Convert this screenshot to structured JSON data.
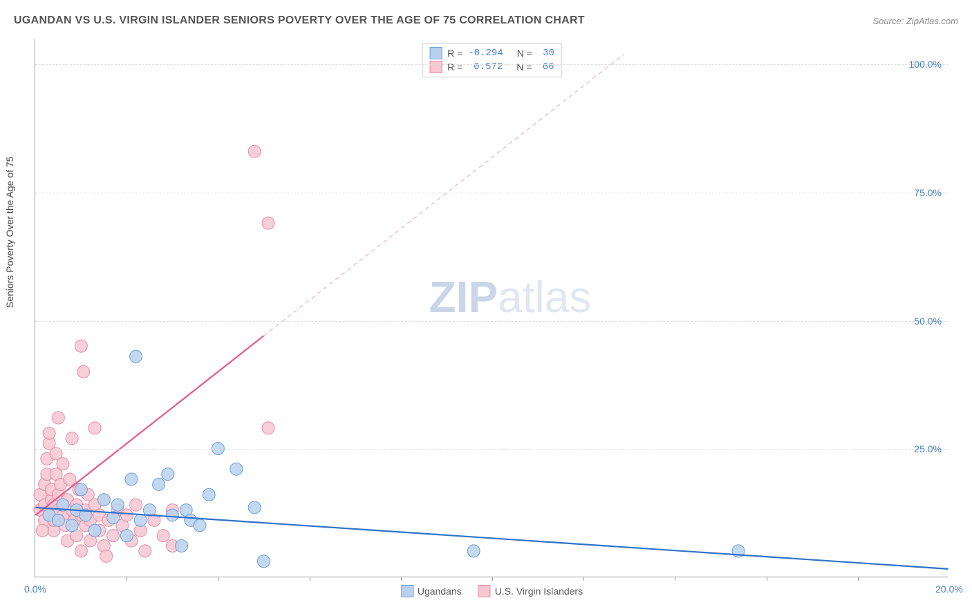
{
  "header": {
    "title": "UGANDAN VS U.S. VIRGIN ISLANDER SENIORS POVERTY OVER THE AGE OF 75 CORRELATION CHART",
    "source_prefix": "Source: ",
    "source": "ZipAtlas.com"
  },
  "chart": {
    "type": "scatter",
    "ylabel": "Seniors Poverty Over the Age of 75",
    "xlim": [
      0,
      20
    ],
    "ylim": [
      0,
      105
    ],
    "yticks": [
      {
        "v": 25,
        "label": "25.0%"
      },
      {
        "v": 50,
        "label": "50.0%"
      },
      {
        "v": 75,
        "label": "75.0%"
      },
      {
        "v": 100,
        "label": "100.0%"
      }
    ],
    "xticks_major": [
      {
        "v": 0,
        "label": "0.0%"
      },
      {
        "v": 20,
        "label": "20.0%"
      }
    ],
    "xticks_minor": [
      2,
      4,
      6,
      8,
      10,
      12,
      14,
      16,
      18
    ],
    "grid_color": "#dddddd",
    "axis_color": "#999999",
    "background_color": "#ffffff",
    "legend_stats": [
      {
        "series": "ugandans",
        "r_label": "R =",
        "r": "-0.294",
        "n_label": "N =",
        "n": "30"
      },
      {
        "series": "virgin_islanders",
        "r_label": "R =",
        "r": "0.572",
        "n_label": "N =",
        "n": "66"
      }
    ],
    "series": {
      "ugandans": {
        "label": "Ugandans",
        "marker_fill": "#b9d1ee",
        "marker_stroke": "#6c9fd8",
        "marker_opacity": 0.85,
        "marker_r": 9,
        "trend": {
          "x1": 0,
          "y1": 13.5,
          "x2": 20,
          "y2": 1.5,
          "color": "#2e72c9",
          "width": 2.2,
          "dash": "none"
        },
        "points": [
          [
            0.3,
            12
          ],
          [
            0.5,
            11
          ],
          [
            0.6,
            14
          ],
          [
            0.8,
            10
          ],
          [
            0.9,
            13
          ],
          [
            1.0,
            17
          ],
          [
            1.1,
            12
          ],
          [
            1.3,
            9
          ],
          [
            1.5,
            15
          ],
          [
            1.7,
            11.5
          ],
          [
            2.0,
            8
          ],
          [
            2.1,
            19
          ],
          [
            2.3,
            11
          ],
          [
            2.5,
            13
          ],
          [
            2.7,
            18
          ],
          [
            2.2,
            43
          ],
          [
            3.0,
            12
          ],
          [
            3.2,
            6
          ],
          [
            3.3,
            13
          ],
          [
            3.4,
            11
          ],
          [
            3.6,
            10
          ],
          [
            4.0,
            25
          ],
          [
            4.4,
            21
          ],
          [
            4.8,
            13.5
          ],
          [
            5.0,
            3
          ],
          [
            3.8,
            16
          ],
          [
            9.6,
            5
          ],
          [
            15.4,
            5
          ],
          [
            2.9,
            20
          ],
          [
            1.8,
            14
          ]
        ]
      },
      "virgin_islanders": {
        "label": "U.S. Virgin Islanders",
        "marker_fill": "#f6c7d2",
        "marker_stroke": "#e88aa4",
        "marker_opacity": 0.85,
        "marker_r": 9,
        "trend_solid": {
          "x1": 0,
          "y1": 12,
          "x2": 5.0,
          "y2": 47,
          "color": "#e9588a",
          "width": 2.2
        },
        "trend_dashed": {
          "x1": 5.0,
          "y1": 47,
          "x2": 12.9,
          "y2": 102,
          "color": "#f3b8c9",
          "width": 1.4,
          "dash": "6,5"
        },
        "points": [
          [
            0.1,
            13
          ],
          [
            0.1,
            16
          ],
          [
            0.2,
            11
          ],
          [
            0.2,
            14
          ],
          [
            0.2,
            18
          ],
          [
            0.25,
            20
          ],
          [
            0.25,
            23
          ],
          [
            0.3,
            26
          ],
          [
            0.3,
            28
          ],
          [
            0.3,
            12
          ],
          [
            0.35,
            15
          ],
          [
            0.35,
            17
          ],
          [
            0.4,
            9
          ],
          [
            0.4,
            11
          ],
          [
            0.4,
            14
          ],
          [
            0.45,
            20
          ],
          [
            0.45,
            24
          ],
          [
            0.5,
            31
          ],
          [
            0.5,
            13
          ],
          [
            0.5,
            16
          ],
          [
            0.55,
            18
          ],
          [
            0.6,
            12
          ],
          [
            0.6,
            22
          ],
          [
            0.65,
            10
          ],
          [
            0.7,
            7
          ],
          [
            0.7,
            15
          ],
          [
            0.75,
            19
          ],
          [
            0.8,
            13
          ],
          [
            0.8,
            27
          ],
          [
            0.85,
            11
          ],
          [
            0.9,
            8
          ],
          [
            0.9,
            14
          ],
          [
            0.95,
            17
          ],
          [
            1.0,
            45
          ],
          [
            1.0,
            12
          ],
          [
            1.0,
            5
          ],
          [
            1.05,
            40
          ],
          [
            1.1,
            10
          ],
          [
            1.1,
            13
          ],
          [
            1.15,
            16
          ],
          [
            1.2,
            7
          ],
          [
            1.2,
            11
          ],
          [
            1.3,
            14
          ],
          [
            1.3,
            29
          ],
          [
            1.4,
            9
          ],
          [
            1.4,
            12
          ],
          [
            1.5,
            6
          ],
          [
            1.5,
            15
          ],
          [
            1.6,
            11
          ],
          [
            1.7,
            8
          ],
          [
            1.8,
            13
          ],
          [
            1.9,
            10
          ],
          [
            2.0,
            12
          ],
          [
            2.1,
            7
          ],
          [
            2.2,
            14
          ],
          [
            2.3,
            9
          ],
          [
            2.4,
            5
          ],
          [
            2.6,
            11
          ],
          [
            2.8,
            8
          ],
          [
            3.0,
            13
          ],
          [
            3.0,
            6
          ],
          [
            4.8,
            83
          ],
          [
            5.1,
            69
          ],
          [
            5.1,
            29
          ],
          [
            1.55,
            4
          ],
          [
            0.15,
            9
          ]
        ]
      }
    },
    "watermark": {
      "zip": "ZIP",
      "atlas": "atlas"
    }
  }
}
